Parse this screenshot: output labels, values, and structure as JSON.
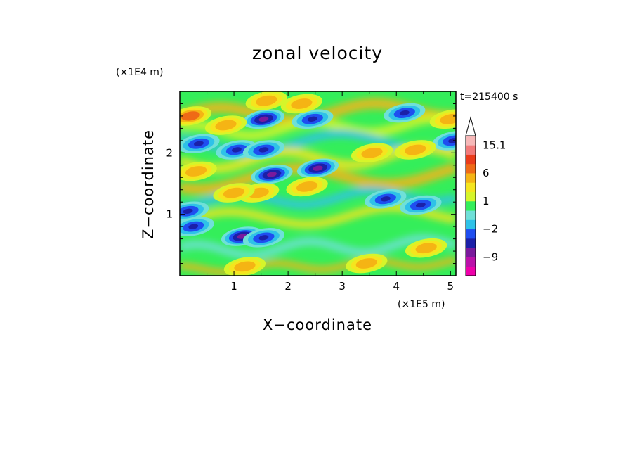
{
  "chart_data": {
    "type": "heatmap",
    "title": "zonal velocity",
    "time_label": "t=215400 s",
    "xlabel": "X−coordinate",
    "ylabel": "Z−coordinate",
    "x_scale_label": "(×1E5 m)",
    "y_scale_label": "(×1E4 m)",
    "xlim": [
      0.0,
      5.1
    ],
    "ylim": [
      0.0,
      3.0
    ],
    "x_ticks": [
      "1",
      "2",
      "3",
      "4",
      "5"
    ],
    "y_ticks": [
      "1",
      "2"
    ],
    "colorbar": {
      "labels": [
        "15.1",
        "6",
        "1",
        "−2",
        "−9"
      ],
      "label_values": [
        15.1,
        6,
        1,
        -2,
        -9
      ],
      "levels": [
        -15,
        -12,
        -9,
        -6,
        -3,
        -2,
        -1,
        0,
        1,
        2,
        3,
        6,
        9,
        12,
        15.1
      ],
      "colors": [
        "#ee00aa",
        "#bb11aa",
        "#7a1a9c",
        "#1b20a8",
        "#1f4ef0",
        "#2ec2e8",
        "#6fe0d8",
        "#34ee5a",
        "#d6f52a",
        "#f5e51e",
        "#f5b414",
        "#ef6a16",
        "#ea3b1a",
        "#f27a7a",
        "#f6b8b8"
      ],
      "extend_top": true
    },
    "features": [
      {
        "x": 0.25,
        "z": 0.8,
        "value": -5.5
      },
      {
        "x": 1.15,
        "z": 0.64,
        "value": -7.5
      },
      {
        "x": 1.55,
        "z": 0.62,
        "value": -4.5
      },
      {
        "x": 1.7,
        "z": 1.65,
        "value": -7.5
      },
      {
        "x": 2.55,
        "z": 1.75,
        "value": -6.5
      },
      {
        "x": 1.55,
        "z": 2.55,
        "value": -6.5
      },
      {
        "x": 2.45,
        "z": 2.55,
        "value": -5.0
      },
      {
        "x": 0.35,
        "z": 2.15,
        "value": -5.0
      },
      {
        "x": 1.05,
        "z": 2.05,
        "value": -4.5
      },
      {
        "x": 4.15,
        "z": 2.65,
        "value": -5.0
      },
      {
        "x": 3.8,
        "z": 1.25,
        "value": -4.0
      },
      {
        "x": 4.45,
        "z": 1.15,
        "value": -3.5
      },
      {
        "x": 0.15,
        "z": 1.05,
        "value": -5.0
      },
      {
        "x": 1.55,
        "z": 2.05,
        "value": -3.5
      },
      {
        "x": 5.05,
        "z": 2.2,
        "value": -4.0
      },
      {
        "x": 0.2,
        "z": 2.6,
        "value": 6.0
      },
      {
        "x": 0.3,
        "z": 1.7,
        "value": 5.5
      },
      {
        "x": 1.45,
        "z": 1.35,
        "value": 5.5
      },
      {
        "x": 2.25,
        "z": 2.8,
        "value": 5.0
      },
      {
        "x": 1.6,
        "z": 2.85,
        "value": 4.5
      },
      {
        "x": 3.55,
        "z": 2.0,
        "value": 5.0
      },
      {
        "x": 4.35,
        "z": 2.05,
        "value": 5.5
      },
      {
        "x": 5.0,
        "z": 2.55,
        "value": 5.0
      },
      {
        "x": 4.55,
        "z": 0.45,
        "value": 4.5
      },
      {
        "x": 1.0,
        "z": 1.35,
        "value": 3.5
      },
      {
        "x": 2.35,
        "z": 1.45,
        "value": 3.5
      },
      {
        "x": 3.45,
        "z": 0.2,
        "value": 3.5
      },
      {
        "x": 1.2,
        "z": 0.15,
        "value": 3.0
      },
      {
        "x": 0.85,
        "z": 2.45,
        "value": 3.5
      }
    ]
  }
}
